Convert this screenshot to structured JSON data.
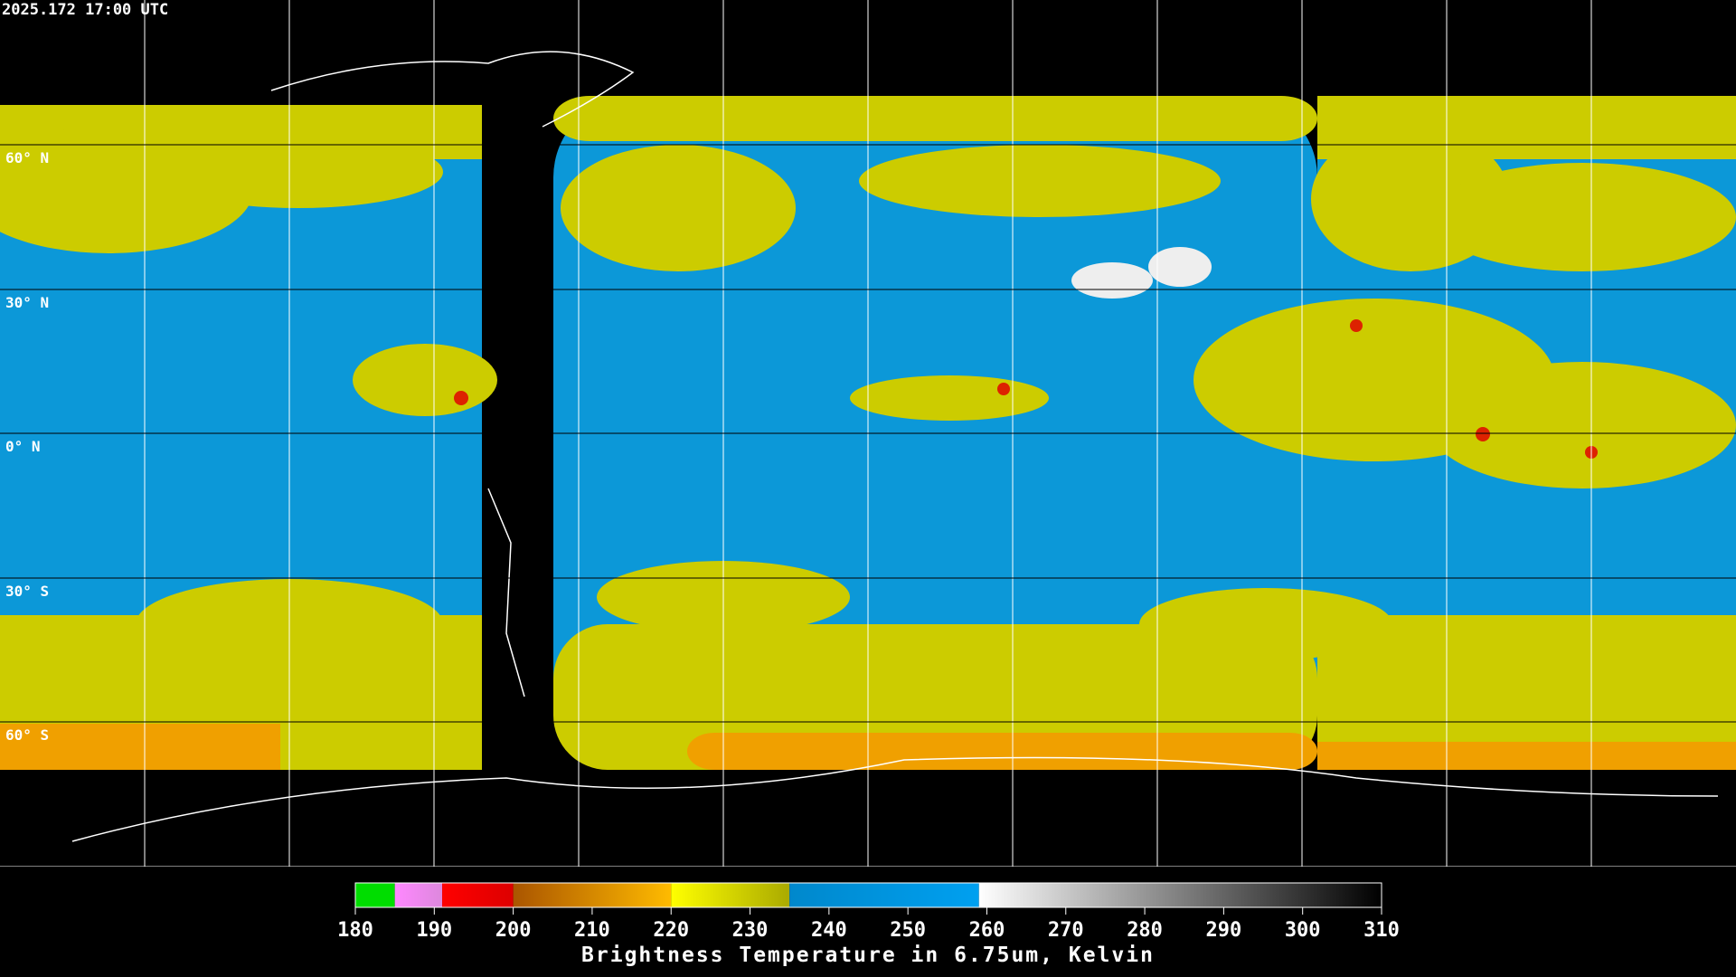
{
  "header": {
    "timestamp": "2025.172 17:00 UTC"
  },
  "map": {
    "latitude_labels": [
      "60° N",
      "30° N",
      "0° N",
      "30° S",
      "60° S"
    ]
  },
  "colorbar": {
    "title": "Brightness Temperature in 6.75um, Kelvin",
    "range": [
      180,
      310
    ],
    "ticks": [
      180,
      190,
      200,
      210,
      220,
      230,
      240,
      250,
      260,
      270,
      280,
      290,
      300,
      310
    ],
    "segments": [
      {
        "from": 180,
        "to": 185,
        "colors": [
          "#00dd00",
          "#00dd00"
        ]
      },
      {
        "from": 185,
        "to": 191,
        "colors": [
          "#ff88ff",
          "#dd88dd"
        ]
      },
      {
        "from": 191,
        "to": 200,
        "colors": [
          "#ff0000",
          "#dd0000"
        ]
      },
      {
        "from": 200,
        "to": 220,
        "colors": [
          "#aa5500",
          "#ffbb00"
        ]
      },
      {
        "from": 220,
        "to": 235,
        "colors": [
          "#ffff00",
          "#aaaa00"
        ]
      },
      {
        "from": 235,
        "to": 259,
        "colors": [
          "#0088cc",
          "#00a0f0"
        ]
      },
      {
        "from": 259,
        "to": 310,
        "colors": [
          "#ffffff",
          "#000000"
        ]
      }
    ]
  }
}
